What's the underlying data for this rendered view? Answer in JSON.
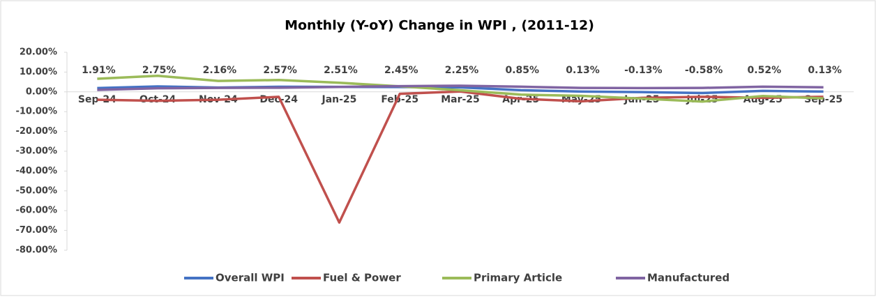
{
  "chart_data": {
    "type": "line",
    "title": "Monthly (Y-oY) Change in WPI , (2011-12)",
    "categories": [
      "Sep-24",
      "Oct-24",
      "Nov-24",
      "Dec-24",
      "Jan-25",
      "Feb-25",
      "Mar-25",
      "Apr-25",
      "May-25",
      "Jun-25",
      "Jul-25",
      "Aug-25",
      "Sep-25"
    ],
    "series": [
      {
        "name": "Overall WPI",
        "color": "#4472c4",
        "values": [
          1.91,
          2.75,
          2.16,
          2.57,
          2.51,
          2.45,
          2.25,
          0.85,
          0.13,
          -0.13,
          -0.58,
          0.52,
          0.13
        ],
        "value_labels": [
          "1.91%",
          "2.75%",
          "2.16%",
          "2.57%",
          "2.51%",
          "2.45%",
          "2.25%",
          "0.85%",
          "0.13%",
          "-0.13%",
          "-0.58%",
          "0.52%",
          "0.13%"
        ]
      },
      {
        "name": "Fuel & Power",
        "color": "#c0504d",
        "values": [
          -4.0,
          -4.5,
          -4.0,
          -2.5,
          -66.0,
          -1.0,
          0.2,
          -3.5,
          -4.8,
          -3.0,
          -2.5,
          -3.0,
          -2.5
        ]
      },
      {
        "name": "Primary Article",
        "color": "#9bbb59",
        "values": [
          6.6,
          8.1,
          5.5,
          6.0,
          4.6,
          2.8,
          0.8,
          -1.4,
          -2.0,
          -3.4,
          -4.9,
          -2.1,
          -3.3
        ]
      },
      {
        "name": "Manufactured",
        "color": "#8064a2",
        "values": [
          1.0,
          1.8,
          2.0,
          2.1,
          2.5,
          2.9,
          3.1,
          2.6,
          2.0,
          1.9,
          2.0,
          2.6,
          2.3
        ]
      }
    ],
    "ylim": [
      -80,
      20
    ],
    "yticks": [
      {
        "value": 20,
        "label": "20.00%"
      },
      {
        "value": 10,
        "label": "10.00%"
      },
      {
        "value": 0,
        "label": "0.00%"
      },
      {
        "value": -10,
        "label": "-10.00%"
      },
      {
        "value": -20,
        "label": "-20.00%"
      },
      {
        "value": -30,
        "label": "-30.00%"
      },
      {
        "value": -40,
        "label": "-40.00%"
      },
      {
        "value": -50,
        "label": "-50.00%"
      },
      {
        "value": -60,
        "label": "-60.00%"
      },
      {
        "value": -70,
        "label": "-70.00%"
      },
      {
        "value": -80,
        "label": "-80.00%"
      }
    ],
    "legend": "bottom"
  }
}
